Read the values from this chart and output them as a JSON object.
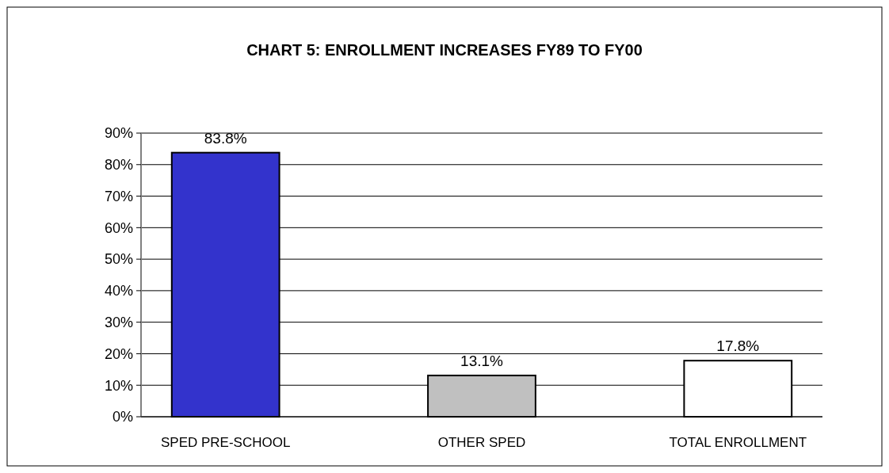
{
  "chart_data": {
    "type": "bar",
    "title": "CHART 5: ENROLLMENT INCREASES FY89 TO FY00",
    "categories": [
      "SPED PRE-SCHOOL",
      "OTHER SPED",
      "TOTAL ENROLLMENT"
    ],
    "values": [
      83.8,
      13.1,
      17.8
    ],
    "colors": [
      "#3333cc",
      "#c0c0c0",
      "#ffffff"
    ],
    "value_labels": [
      "83.8%",
      "13.1%",
      "17.8%"
    ],
    "ylim": [
      0,
      90
    ],
    "yticks": [
      {
        "value": 0,
        "label": "0%"
      },
      {
        "value": 10,
        "label": "10%"
      },
      {
        "value": 20,
        "label": "20%"
      },
      {
        "value": 30,
        "label": "30%"
      },
      {
        "value": 40,
        "label": "40%"
      },
      {
        "value": 50,
        "label": "50%"
      },
      {
        "value": 60,
        "label": "60%"
      },
      {
        "value": 70,
        "label": "70%"
      },
      {
        "value": 80,
        "label": "80%"
      },
      {
        "value": 90,
        "label": "90%"
      }
    ],
    "grid": "y"
  }
}
